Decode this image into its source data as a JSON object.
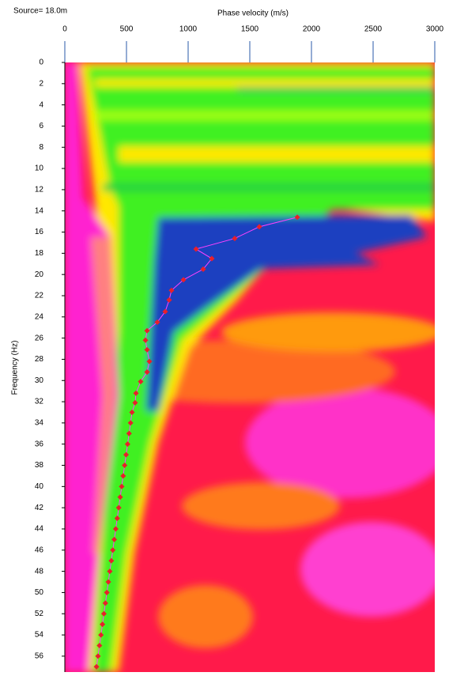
{
  "chart_data": {
    "type": "scatter",
    "title": "Source= 18.0m",
    "x_label": "Phase velocity (m/s)",
    "y_label": "Frequency (Hz)",
    "x_axis_position": "top",
    "y_inverted": true,
    "xlim": [
      0,
      3000
    ],
    "xticks": [
      0,
      500,
      1000,
      1500,
      2000,
      2500,
      3000
    ],
    "ylim": [
      0,
      57.5
    ],
    "yticks": [
      0,
      2,
      4,
      6,
      8,
      10,
      12,
      14,
      16,
      18,
      20,
      22,
      24,
      26,
      28,
      30,
      32,
      34,
      36,
      38,
      40,
      42,
      44,
      46,
      48,
      50,
      52,
      54,
      56
    ],
    "line_color": "#ff40ff",
    "marker_color": "#e8202a",
    "x": [
      1885,
      1577,
      1378,
      1064,
      1192,
      1122,
      962,
      865,
      846,
      814,
      750,
      667,
      654,
      667,
      686,
      667,
      615,
      577,
      570,
      545,
      533,
      521,
      509,
      497,
      485,
      473,
      461,
      449,
      437,
      425,
      413,
      401,
      389,
      377,
      365,
      353,
      341,
      329,
      317,
      305,
      293,
      281,
      269,
      257
    ],
    "values": [
      14.6,
      15.5,
      16.6,
      17.6,
      18.5,
      19.5,
      20.5,
      21.5,
      22.4,
      23.5,
      24.5,
      25.3,
      26.2,
      27.1,
      28.2,
      29.2,
      30.1,
      31.2,
      32.1,
      33,
      34,
      35,
      36,
      37,
      38,
      39,
      40,
      41,
      42,
      43,
      44,
      45,
      46,
      47,
      48,
      49,
      50,
      51,
      52,
      53,
      54,
      55,
      56,
      57
    ]
  }
}
